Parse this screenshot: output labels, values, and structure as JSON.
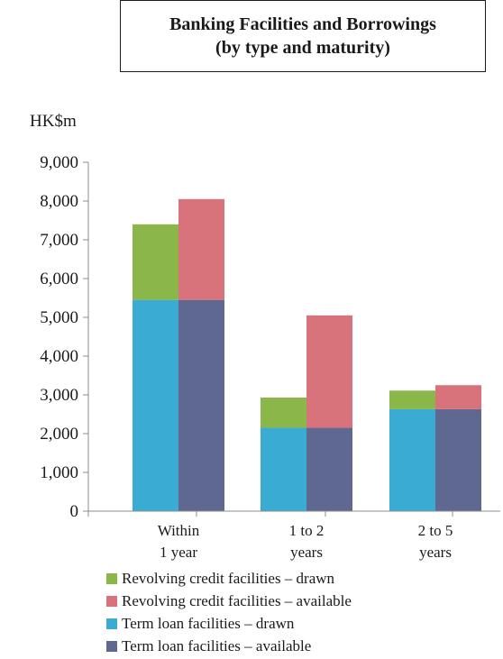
{
  "title": {
    "line1": "Banking Facilities and Borrowings",
    "line2": "(by type and maturity)"
  },
  "unit_label": "HK$m",
  "chart_data": {
    "type": "bar",
    "stacked": true,
    "title": "Banking Facilities and Borrowings (by type and maturity)",
    "ylabel": "HK$m",
    "ylim": [
      0,
      9000
    ],
    "yticks": [
      0,
      1000,
      2000,
      3000,
      4000,
      5000,
      6000,
      7000,
      8000,
      9000
    ],
    "ytick_labels": [
      "0",
      "1,000",
      "2,000",
      "3,000",
      "4,000",
      "5,000",
      "6,000",
      "7,000",
      "8,000",
      "9,000"
    ],
    "categories": [
      "Within 1 year",
      "1 to 2 years",
      "2 to 5 years"
    ],
    "category_label_lines": [
      [
        "Within",
        "1 year"
      ],
      [
        "1 to 2",
        "years"
      ],
      [
        "2 to 5",
        "years"
      ]
    ],
    "bars_per_category": [
      {
        "name": "drawn",
        "series": [
          {
            "name": "Term loan facilities – drawn",
            "color": "#3aacd3",
            "values": [
              5450,
              2150,
              2630
            ]
          },
          {
            "name": "Revolving credit facilities – drawn",
            "color": "#8ab64a",
            "values": [
              1950,
              780,
              480
            ]
          }
        ]
      },
      {
        "name": "available",
        "series": [
          {
            "name": "Term loan facilities – available",
            "color": "#5e6890",
            "values": [
              5450,
              2150,
              2630
            ]
          },
          {
            "name": "Revolving credit facilities – available",
            "color": "#d9737b",
            "values": [
              2600,
              2900,
              620
            ]
          }
        ]
      }
    ],
    "legend": [
      {
        "label": "Revolving credit facilities – drawn",
        "color": "#8ab64a"
      },
      {
        "label": "Revolving credit facilities – available",
        "color": "#d9737b"
      },
      {
        "label": "Term loan facilities – drawn",
        "color": "#3aacd3"
      },
      {
        "label": "Term loan facilities – available",
        "color": "#5e6890"
      }
    ],
    "legend_position": "bottom",
    "grid": false
  }
}
